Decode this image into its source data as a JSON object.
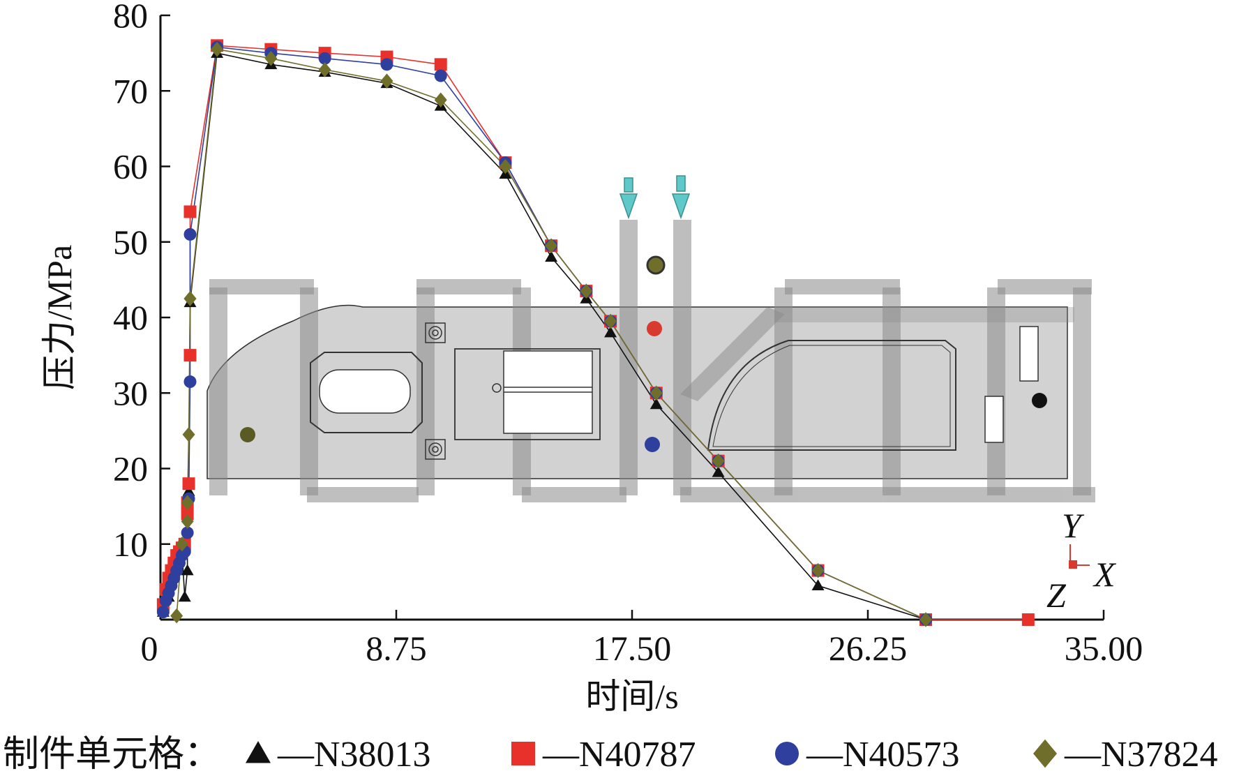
{
  "chart_data": {
    "type": "line",
    "title": "",
    "xlabel": "时间/s",
    "ylabel": "压力/MPa",
    "xlim": [
      0,
      35
    ],
    "ylim": [
      0,
      80
    ],
    "x_ticks": [
      "0",
      "8.75",
      "17.50",
      "26.25",
      "35.00"
    ],
    "y_ticks": [
      "10",
      "20",
      "30",
      "40",
      "50",
      "60",
      "70",
      "80"
    ],
    "x_tick_values": [
      0,
      8.75,
      17.5,
      26.25,
      35.0
    ],
    "y_tick_values": [
      10,
      20,
      30,
      40,
      50,
      60,
      70,
      80
    ],
    "legend": {
      "position": "bottom",
      "title": "制件单元格：",
      "separator": "—"
    },
    "series": [
      {
        "name": "N38013",
        "marker": "triangle",
        "color": "#111111",
        "x": [
          0.1,
          0.3,
          0.5,
          0.6,
          0.7,
          0.8,
          0.9,
          1.0,
          1.0,
          1.05,
          1.1,
          2.1,
          4.1,
          6.1,
          8.4,
          10.4,
          12.8,
          14.5,
          15.8,
          16.7,
          18.4,
          20.7,
          24.4,
          28.4,
          32.2
        ],
        "y": [
          1.0,
          3.0,
          6.0,
          8.0,
          9.5,
          9.0,
          3.0,
          6.5,
          15.0,
          17.0,
          42.0,
          75.0,
          73.5,
          72.5,
          71.0,
          68.0,
          59.0,
          48.0,
          42.5,
          38.0,
          28.5,
          19.5,
          4.5,
          0.0,
          0.0
        ]
      },
      {
        "name": "N40787",
        "marker": "square",
        "color": "#e8312a",
        "x": [
          0.1,
          0.2,
          0.3,
          0.4,
          0.5,
          0.6,
          0.7,
          0.8,
          0.9,
          1.0,
          1.0,
          1.05,
          1.1,
          1.1,
          2.1,
          4.1,
          6.1,
          8.4,
          10.4,
          12.8,
          14.5,
          15.8,
          16.7,
          18.4,
          20.7,
          24.4,
          28.4,
          32.2
        ],
        "y": [
          2.0,
          4.0,
          5.5,
          6.5,
          7.5,
          8.5,
          9.0,
          9.5,
          10.0,
          14.0,
          15.5,
          18.0,
          35.0,
          54.0,
          76.0,
          75.5,
          75.0,
          74.5,
          73.5,
          60.5,
          49.5,
          43.5,
          39.5,
          30.0,
          21.0,
          6.5,
          0.0,
          0.0
        ]
      },
      {
        "name": "N40573",
        "marker": "circle",
        "color": "#2f3f9e",
        "x": [
          0.1,
          0.2,
          0.3,
          0.4,
          0.5,
          0.6,
          0.7,
          0.8,
          0.9,
          1.0,
          1.05,
          1.1,
          1.1,
          2.1,
          4.1,
          6.1,
          8.4,
          10.4,
          12.8,
          14.5,
          15.8,
          16.7,
          18.4,
          20.7,
          24.4,
          28.4
        ],
        "y": [
          1.0,
          2.5,
          3.5,
          4.5,
          5.5,
          6.5,
          7.5,
          8.5,
          9.0,
          11.5,
          16.0,
          31.5,
          51.0,
          75.8,
          75.0,
          74.3,
          73.5,
          72.0,
          60.5,
          49.5,
          43.5,
          39.5,
          30.0,
          21.0,
          6.5,
          0.0
        ]
      },
      {
        "name": "N37824",
        "marker": "diamond",
        "color": "#6f6e2a",
        "x": [
          0.6,
          0.8,
          1.0,
          1.0,
          1.05,
          1.1,
          1.1,
          2.1,
          4.1,
          6.1,
          8.4,
          10.4,
          12.8,
          14.5,
          15.8,
          16.7,
          18.4,
          20.7,
          24.4,
          28.4
        ],
        "y": [
          0.5,
          10.0,
          13.0,
          15.5,
          24.5,
          42.5,
          42.5,
          75.5,
          74.3,
          72.8,
          71.3,
          68.8,
          60.0,
          49.5,
          43.5,
          39.5,
          30.0,
          21.0,
          6.5,
          0.0
        ]
      }
    ],
    "annotations": {
      "coordinate_triad": {
        "x_label": "X",
        "y_label": "Y",
        "z_label": "Z"
      }
    }
  }
}
